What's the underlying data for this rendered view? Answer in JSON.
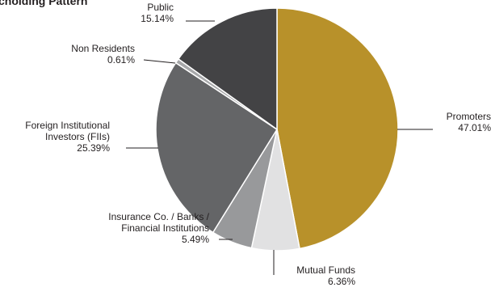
{
  "chart_data": {
    "type": "pie",
    "title_fragment": "cholding Pattern",
    "slices": [
      {
        "name": "Promoters",
        "value": 47.01,
        "label": "47.01%",
        "color": "#b8912a"
      },
      {
        "name": "Mutual Funds",
        "value": 6.36,
        "label": "6.36%",
        "color": "#e1e1e2"
      },
      {
        "name": "Insurance Co. / Banks / Financial Institutions",
        "value": 5.49,
        "label": "5.49%",
        "color": "#98999b"
      },
      {
        "name": "Foreign Institutional Investors (FIIs)",
        "value": 25.39,
        "label": "25.39%",
        "color": "#646567"
      },
      {
        "name": "Non Residents",
        "value": 0.61,
        "label": "0.61%",
        "color": "#a7a8aa"
      },
      {
        "name": "Public",
        "value": 15.14,
        "label": "15.14%",
        "color": "#434345"
      }
    ]
  }
}
